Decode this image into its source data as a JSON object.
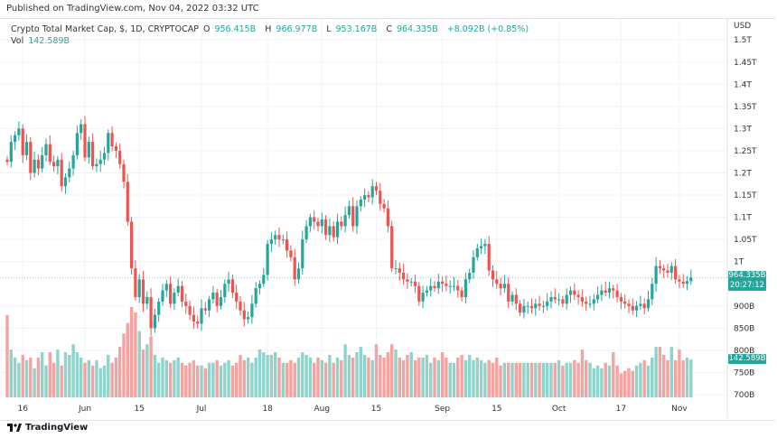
{
  "published": "Published on TradingView.com, Nov 04, 2022 03:32 UTC",
  "legend": {
    "symbol": "Crypto Total Market Cap, $, 1D, CRYPTOCAP",
    "o_label": "O",
    "o": "956.415B",
    "h_label": "H",
    "h": "966.977B",
    "l_label": "L",
    "l": "953.167B",
    "c_label": "C",
    "c": "964.335B",
    "change": "+8.092B (+0.85%)",
    "vol_label": "Vol",
    "vol": "142.589B"
  },
  "price_tag": {
    "price": "964.335B",
    "countdown": "20:27:12"
  },
  "volume_tag": "142.589B",
  "footer": {
    "brand": "TradingView"
  },
  "colors": {
    "up": "#26a69a",
    "down": "#ef5350",
    "vol_up": "#8fd3ca",
    "vol_down": "#f5a3a1"
  },
  "chart_data": {
    "type": "candlestick",
    "start_date": "2022-05-12",
    "currency": "USD",
    "y_axis_unit": "USD",
    "y_ticks": [
      "1.5T",
      "1.45T",
      "1.4T",
      "1.35T",
      "1.3T",
      "1.25T",
      "1.2T",
      "1.15T",
      "1.1T",
      "1.05T",
      "1T",
      "900B",
      "850B",
      "800B",
      "750B",
      "700B"
    ],
    "y_tick_values": [
      1500,
      1450,
      1400,
      1350,
      1300,
      1250,
      1200,
      1150,
      1100,
      1050,
      1000,
      900,
      850,
      800,
      750,
      700
    ],
    "ylim_billions": [
      700,
      1500
    ],
    "x_ticks": [
      {
        "label": "16",
        "day": 4
      },
      {
        "label": "Jun",
        "day": 20
      },
      {
        "label": "15",
        "day": 34
      },
      {
        "label": "Jul",
        "day": 50
      },
      {
        "label": "18",
        "day": 67
      },
      {
        "label": "Aug",
        "day": 81
      },
      {
        "label": "15",
        "day": 95
      },
      {
        "label": "Sep",
        "day": 112
      },
      {
        "label": "15",
        "day": 126
      },
      {
        "label": "Oct",
        "day": 142
      },
      {
        "label": "17",
        "day": 158
      },
      {
        "label": "Nov",
        "day": 173
      }
    ],
    "first_open": 1230,
    "closes_billions": [
      1225,
      1270,
      1285,
      1300,
      1240,
      1270,
      1200,
      1230,
      1210,
      1240,
      1265,
      1225,
      1215,
      1230,
      1170,
      1190,
      1210,
      1240,
      1290,
      1310,
      1235,
      1270,
      1215,
      1220,
      1230,
      1245,
      1290,
      1260,
      1250,
      1220,
      1180,
      1090,
      985,
      920,
      960,
      905,
      920,
      850,
      880,
      910,
      935,
      950,
      905,
      930,
      945,
      910,
      900,
      880,
      865,
      860,
      895,
      890,
      915,
      930,
      900,
      920,
      950,
      960,
      930,
      910,
      890,
      870,
      875,
      905,
      940,
      950,
      970,
      1040,
      1050,
      1060,
      1050,
      1050,
      1025,
      1010,
      960,
      985,
      1050,
      1080,
      1100,
      1090,
      1080,
      1095,
      1060,
      1080,
      1055,
      1090,
      1080,
      1105,
      1125,
      1080,
      1125,
      1140,
      1150,
      1145,
      1170,
      1160,
      1130,
      1120,
      1080,
      985,
      985,
      975,
      960,
      955,
      955,
      945,
      910,
      930,
      935,
      945,
      940,
      955,
      950,
      945,
      945,
      945,
      935,
      920,
      960,
      975,
      1010,
      1030,
      1035,
      1040,
      980,
      960,
      950,
      940,
      950,
      910,
      925,
      905,
      885,
      900,
      900,
      895,
      905,
      900,
      900,
      910,
      920,
      915,
      915,
      905,
      925,
      935,
      925,
      920,
      910,
      905,
      905,
      915,
      925,
      935,
      930,
      940,
      935,
      920,
      910,
      905,
      900,
      890,
      900,
      905,
      895,
      915,
      950,
      990,
      985,
      980,
      975,
      990,
      960,
      955,
      950,
      956,
      964.335
    ],
    "volumes_billions": [
      310,
      180,
      150,
      130,
      160,
      140,
      150,
      110,
      150,
      170,
      120,
      170,
      130,
      180,
      120,
      170,
      160,
      200,
      170,
      150,
      130,
      140,
      120,
      140,
      110,
      120,
      160,
      130,
      150,
      190,
      240,
      280,
      340,
      320,
      250,
      180,
      200,
      230,
      160,
      130,
      150,
      140,
      130,
      140,
      150,
      130,
      120,
      130,
      140,
      120,
      120,
      110,
      130,
      130,
      140,
      120,
      130,
      140,
      120,
      130,
      160,
      140,
      150,
      130,
      150,
      180,
      170,
      160,
      160,
      170,
      150,
      130,
      130,
      140,
      130,
      150,
      170,
      160,
      150,
      130,
      150,
      140,
      130,
      160,
      130,
      150,
      140,
      200,
      160,
      150,
      170,
      190,
      160,
      150,
      140,
      200,
      160,
      150,
      170,
      200,
      180,
      150,
      140,
      160,
      170,
      140,
      150,
      150,
      160,
      130,
      150,
      140,
      170,
      150,
      130,
      130,
      150,
      160,
      140,
      160,
      140,
      150,
      140,
      130,
      140,
      130,
      150,
      120,
      130,
      130,
      130,
      130,
      130,
      130,
      130,
      130,
      130,
      130,
      130,
      130,
      130,
      130,
      140,
      120,
      130,
      130,
      140,
      130,
      180,
      140,
      130,
      110,
      120,
      110,
      130,
      120,
      170,
      120,
      90,
      100,
      110,
      100,
      120,
      130,
      140,
      120,
      150,
      190,
      190,
      160,
      140,
      190,
      140,
      180,
      140,
      150,
      142.589
    ],
    "last_price_billions": 964.335
  }
}
